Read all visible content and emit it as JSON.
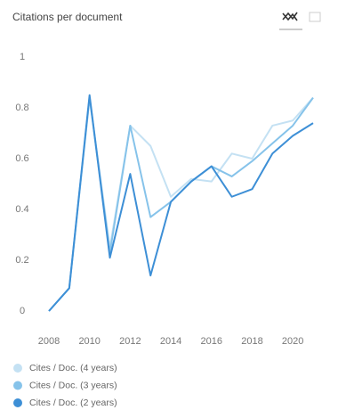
{
  "chart_data": {
    "type": "line",
    "title": "Citations per document",
    "x": [
      2008,
      2009,
      2010,
      2011,
      2012,
      2013,
      2014,
      2015,
      2016,
      2017,
      2018,
      2019,
      2020,
      2021
    ],
    "xlim": [
      2008,
      2021
    ],
    "xticks": [
      2008,
      2010,
      2012,
      2014,
      2016,
      2018,
      2020
    ],
    "ylim": [
      0,
      1
    ],
    "yticks": [
      0,
      0.2,
      0.4,
      0.6,
      0.8,
      1
    ],
    "grid": false,
    "series": [
      {
        "name": "Cites / Doc. (4 years)",
        "color": "#c4e1f3",
        "values": [
          0,
          0.09,
          0.84,
          0.25,
          0.73,
          0.65,
          0.45,
          0.52,
          0.51,
          0.62,
          0.6,
          0.73,
          0.75,
          0.84
        ]
      },
      {
        "name": "Cites / Doc. (3 years)",
        "color": "#86c3ea",
        "values": [
          0,
          0.09,
          0.84,
          0.23,
          0.73,
          0.37,
          0.43,
          0.51,
          0.57,
          0.53,
          0.59,
          0.66,
          0.73,
          0.84
        ]
      },
      {
        "name": "Cites / Doc. (2 years)",
        "color": "#3d8fd6",
        "values": [
          0,
          0.09,
          0.85,
          0.21,
          0.54,
          0.14,
          0.43,
          0.51,
          0.57,
          0.45,
          0.48,
          0.62,
          0.69,
          0.74
        ]
      }
    ]
  }
}
